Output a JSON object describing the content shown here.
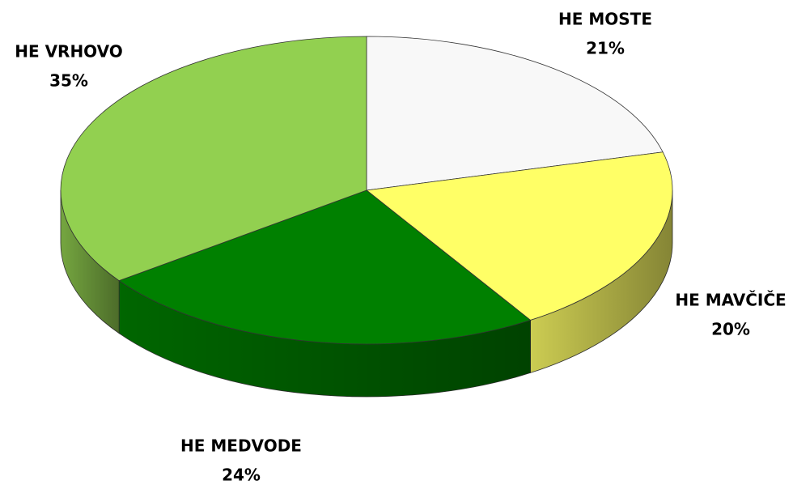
{
  "chart_data": {
    "type": "pie",
    "categories": [
      "HE MOSTE",
      "HE MAVČIČE",
      "HE MEDVODE",
      "HE VRHOVO"
    ],
    "values": [
      21,
      20,
      24,
      35
    ],
    "value_labels": [
      "21%",
      "20%",
      "24%",
      "35%"
    ],
    "colors": [
      "#f8f8f8",
      "#ffff66",
      "#008000",
      "#92d050"
    ]
  }
}
